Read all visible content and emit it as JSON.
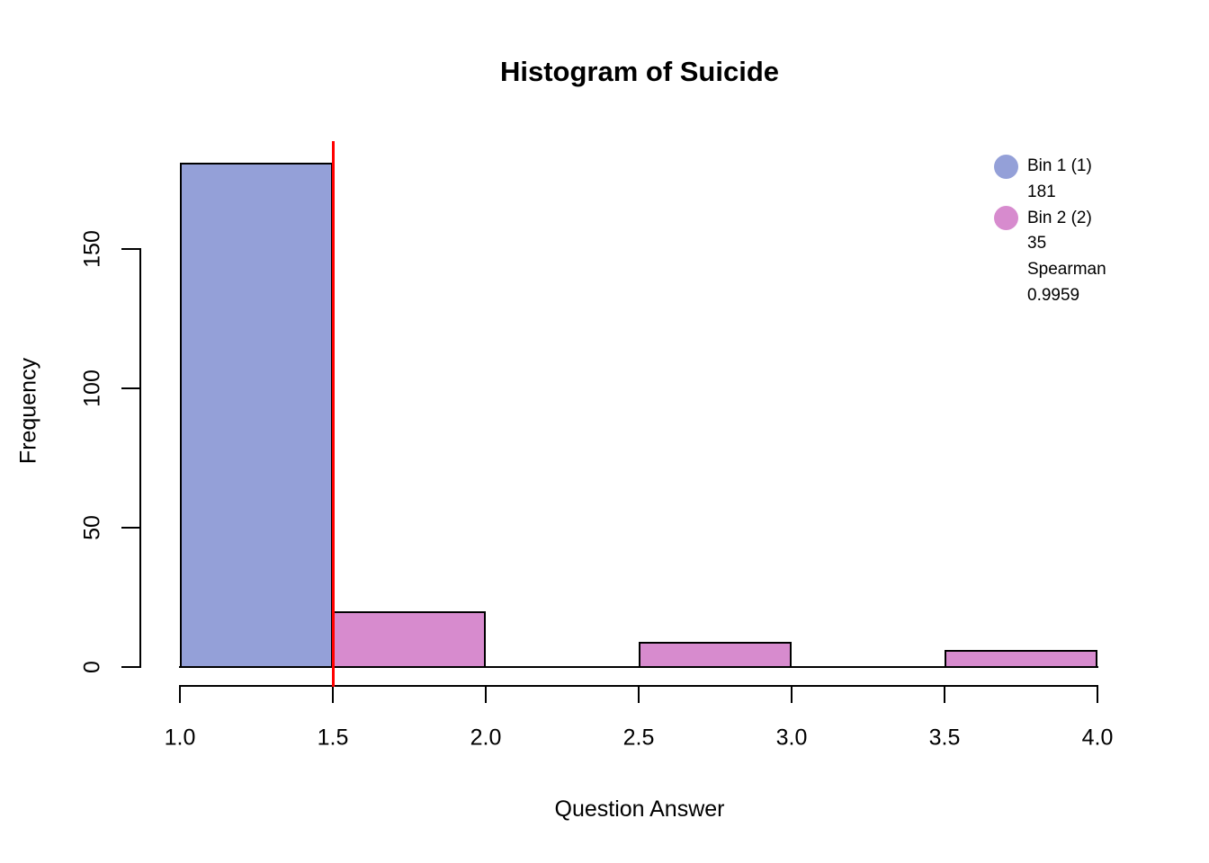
{
  "title": "Histogram of Suicide",
  "axes": {
    "x_label": "Question Answer",
    "y_label": "Frequency"
  },
  "legend": {
    "bin1_label": "Bin 1 (1)",
    "bin1_value": "181",
    "bin2_label": "Bin 2 (2)",
    "bin2_value": "35",
    "stat_label": "Spearman",
    "stat_value": "0.9959"
  },
  "colors": {
    "bin1": "#94A0D8",
    "bin2": "#D78BCE",
    "threshold_line": "#FF0000",
    "axis": "#000000",
    "background": "#FFFFFF"
  },
  "chart_data": {
    "type": "bar",
    "subtype": "histogram",
    "title": "Histogram of Suicide",
    "xlabel": "Question Answer",
    "ylabel": "Frequency",
    "xlim": [
      1.0,
      4.0
    ],
    "ylim": [
      0,
      181
    ],
    "grid": false,
    "legend_position": "top-right",
    "bins": [
      {
        "x0": 1.0,
        "x1": 1.5,
        "count": 181,
        "series": "bin1"
      },
      {
        "x0": 1.5,
        "x1": 2.0,
        "count": 20,
        "series": "bin2"
      },
      {
        "x0": 2.0,
        "x1": 2.5,
        "count": 0,
        "series": "bin2"
      },
      {
        "x0": 2.5,
        "x1": 3.0,
        "count": 9,
        "series": "bin2"
      },
      {
        "x0": 3.0,
        "x1": 3.5,
        "count": 0,
        "series": "bin2"
      },
      {
        "x0": 3.5,
        "x1": 4.0,
        "count": 6,
        "series": "bin2"
      }
    ],
    "series": [
      {
        "name": "Bin 1 (1)",
        "total": 181
      },
      {
        "name": "Bin 2 (2)",
        "total": 35
      }
    ],
    "statistic": {
      "name": "Spearman",
      "value": 0.9959
    },
    "threshold_x": 1.5,
    "x_ticks": [
      {
        "value": 1.0,
        "label": "1.0"
      },
      {
        "value": 1.5,
        "label": "1.5"
      },
      {
        "value": 2.0,
        "label": "2.0"
      },
      {
        "value": 2.5,
        "label": "2.5"
      },
      {
        "value": 3.0,
        "label": "3.0"
      },
      {
        "value": 3.5,
        "label": "3.5"
      },
      {
        "value": 4.0,
        "label": "4.0"
      }
    ],
    "y_ticks": [
      {
        "value": 0,
        "label": "0"
      },
      {
        "value": 50,
        "label": "50"
      },
      {
        "value": 100,
        "label": "100"
      },
      {
        "value": 150,
        "label": "150"
      }
    ]
  }
}
